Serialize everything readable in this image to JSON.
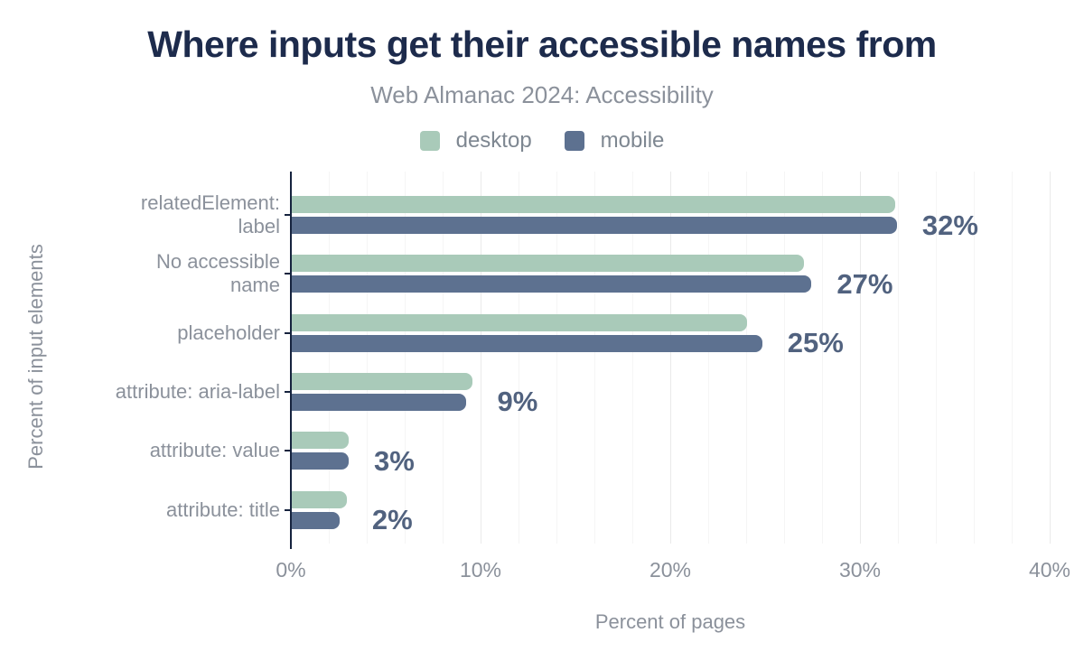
{
  "chart_data": {
    "type": "bar",
    "orientation": "horizontal",
    "title": "Where inputs get their accessible names from",
    "subtitle": "Web Almanac 2024: Accessibility",
    "xlabel": "Percent of pages",
    "ylabel": "Percent of input elements",
    "xlim": [
      0,
      40
    ],
    "xticks": [
      {
        "value": 0,
        "label": "0%"
      },
      {
        "value": 10,
        "label": "10%"
      },
      {
        "value": 20,
        "label": "20%"
      },
      {
        "value": 30,
        "label": "30%"
      },
      {
        "value": 40,
        "label": "40%"
      }
    ],
    "grid": {
      "show": true,
      "minor_step_pct": 2,
      "major_step_pct": 10
    },
    "legend_position": "top",
    "categories": [
      "relatedElement: label",
      "No accessible name",
      "placeholder",
      "attribute: aria-label",
      "attribute: value",
      "attribute: title"
    ],
    "category_label_lines": [
      [
        "relatedElement:",
        "label"
      ],
      [
        "No accessible",
        "name"
      ],
      [
        "placeholder"
      ],
      [
        "attribute: aria-label"
      ],
      [
        "attribute: value"
      ],
      [
        "attribute: title"
      ]
    ],
    "series": [
      {
        "name": "desktop",
        "color": "#a9cab9",
        "values": [
          31.8,
          27.0,
          24.0,
          9.5,
          3.0,
          2.9
        ]
      },
      {
        "name": "mobile",
        "color": "#5d7190",
        "values": [
          31.9,
          27.4,
          24.8,
          9.2,
          3.0,
          2.5
        ]
      }
    ],
    "value_labels": [
      "32%",
      "27%",
      "25%",
      "9%",
      "3%",
      "2%"
    ],
    "colors": {
      "title": "#1d2b4c",
      "text_gray": "#8b919b",
      "value_label": "#51627f",
      "axis": "#16233e",
      "grid_minor": "#f5f5f5",
      "grid_major": "#eaeaea"
    }
  }
}
